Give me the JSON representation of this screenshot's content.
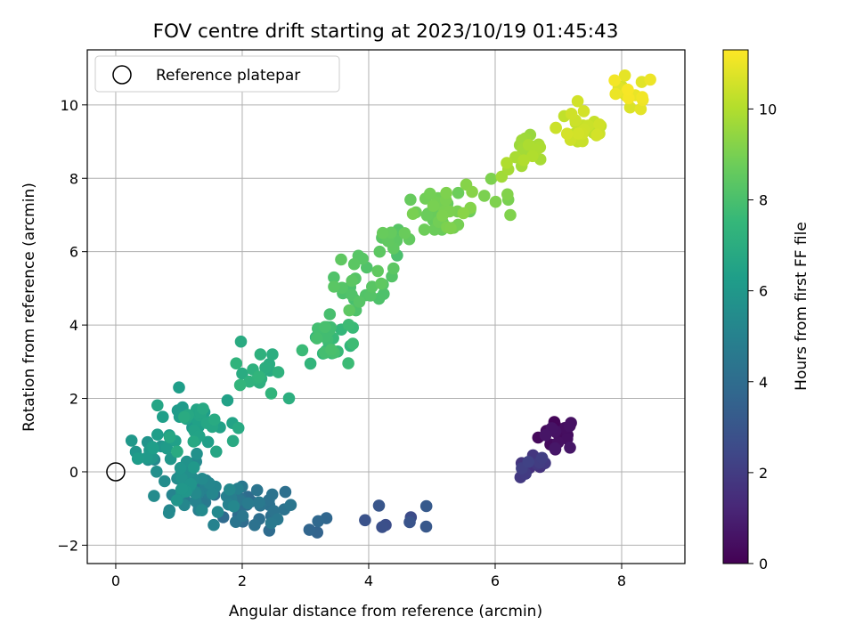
{
  "chart_data": {
    "type": "scatter",
    "title": "FOV centre drift starting at 2023/10/19 01:45:43",
    "xlabel": "Angular distance from reference (arcmin)",
    "ylabel": "Rotation from reference (arcmin)",
    "xlim": [
      -0.45,
      9.0
    ],
    "ylim": [
      -2.5,
      11.5
    ],
    "xticks": [
      0,
      2,
      4,
      6,
      8
    ],
    "yticks": [
      -2,
      0,
      2,
      4,
      6,
      8,
      10
    ],
    "xtick_labels": [
      "0",
      "2",
      "4",
      "6",
      "8"
    ],
    "ytick_labels": [
      "−2",
      "0",
      "2",
      "4",
      "6",
      "8",
      "10"
    ],
    "grid": true,
    "legend": {
      "placement": "top-left",
      "entries": [
        "Reference platepar"
      ]
    },
    "reference_point": {
      "x": 0,
      "y": 0
    },
    "colorbar": {
      "label": "Hours from first FF file",
      "colormap": "viridis",
      "range": [
        0,
        11.3
      ],
      "ticks": [
        0,
        2,
        4,
        6,
        8,
        10
      ],
      "tick_labels": [
        "0",
        "2",
        "4",
        "6",
        "8",
        "10"
      ]
    },
    "clusters": [
      {
        "x": 7.0,
        "y": 1.05,
        "sx": 0.16,
        "sy": 0.22,
        "n": 22,
        "t0": 0.1,
        "t1": 0.7
      },
      {
        "x": 6.65,
        "y": 0.15,
        "sx": 0.14,
        "sy": 0.15,
        "n": 11,
        "t0": 1.6,
        "t1": 2.2
      },
      {
        "x": 4.5,
        "y": -1.3,
        "sx": 0.28,
        "sy": 0.25,
        "n": 8,
        "t0": 2.6,
        "t1": 3.2
      },
      {
        "x": 3.2,
        "y": -1.55,
        "sx": 0.08,
        "sy": 0.2,
        "n": 4,
        "t0": 3.6,
        "t1": 3.8
      },
      {
        "x": 2.2,
        "y": -1.0,
        "sx": 0.32,
        "sy": 0.3,
        "n": 30,
        "t0": 3.9,
        "t1": 4.6
      },
      {
        "x": 1.45,
        "y": -0.7,
        "sx": 0.32,
        "sy": 0.28,
        "n": 35,
        "t0": 4.6,
        "t1": 5.4
      },
      {
        "x": 0.95,
        "y": -0.1,
        "sx": 0.22,
        "sy": 0.4,
        "n": 28,
        "t0": 5.3,
        "t1": 6.0
      },
      {
        "x": 0.55,
        "y": 0.6,
        "sx": 0.22,
        "sy": 0.2,
        "n": 12,
        "t0": 5.8,
        "t1": 6.3
      },
      {
        "x": 1.3,
        "y": 1.35,
        "sx": 0.32,
        "sy": 0.4,
        "n": 40,
        "t0": 6.1,
        "t1": 6.9
      },
      {
        "x": 2.3,
        "y": 2.6,
        "sx": 0.22,
        "sy": 0.3,
        "n": 18,
        "t0": 6.9,
        "t1": 7.4
      },
      {
        "x": 3.35,
        "y": 3.6,
        "sx": 0.2,
        "sy": 0.4,
        "n": 28,
        "t0": 7.4,
        "t1": 8.0
      },
      {
        "x": 3.95,
        "y": 5.2,
        "sx": 0.25,
        "sy": 0.4,
        "n": 30,
        "t0": 8.0,
        "t1": 8.5
      },
      {
        "x": 4.4,
        "y": 6.4,
        "sx": 0.18,
        "sy": 0.25,
        "n": 10,
        "t0": 8.3,
        "t1": 8.7
      },
      {
        "x": 5.15,
        "y": 7.1,
        "sx": 0.28,
        "sy": 0.25,
        "n": 34,
        "t0": 8.6,
        "t1": 9.1
      },
      {
        "x": 5.8,
        "y": 7.5,
        "sx": 0.22,
        "sy": 0.25,
        "n": 10,
        "t0": 9.0,
        "t1": 9.3
      },
      {
        "x": 6.5,
        "y": 8.6,
        "sx": 0.2,
        "sy": 0.3,
        "n": 22,
        "t0": 9.5,
        "t1": 10.0
      },
      {
        "x": 7.4,
        "y": 9.4,
        "sx": 0.22,
        "sy": 0.35,
        "n": 30,
        "t0": 10.2,
        "t1": 10.6
      },
      {
        "x": 8.1,
        "y": 10.3,
        "sx": 0.22,
        "sy": 0.25,
        "n": 18,
        "t0": 10.6,
        "t1": 11.2
      }
    ],
    "outliers": [
      {
        "x": 1.98,
        "y": 3.55,
        "t": 6.9
      },
      {
        "x": 3.08,
        "y": 2.95,
        "t": 7.4
      },
      {
        "x": 0.25,
        "y": 0.85,
        "t": 6.0
      },
      {
        "x": 6.4,
        "y": -0.15,
        "t": 1.9
      },
      {
        "x": 0.85,
        "y": -1.05,
        "t": 5.2
      },
      {
        "x": 1.55,
        "y": -1.45,
        "t": 5.0
      },
      {
        "x": 1.0,
        "y": 2.3,
        "t": 6.3
      }
    ]
  }
}
